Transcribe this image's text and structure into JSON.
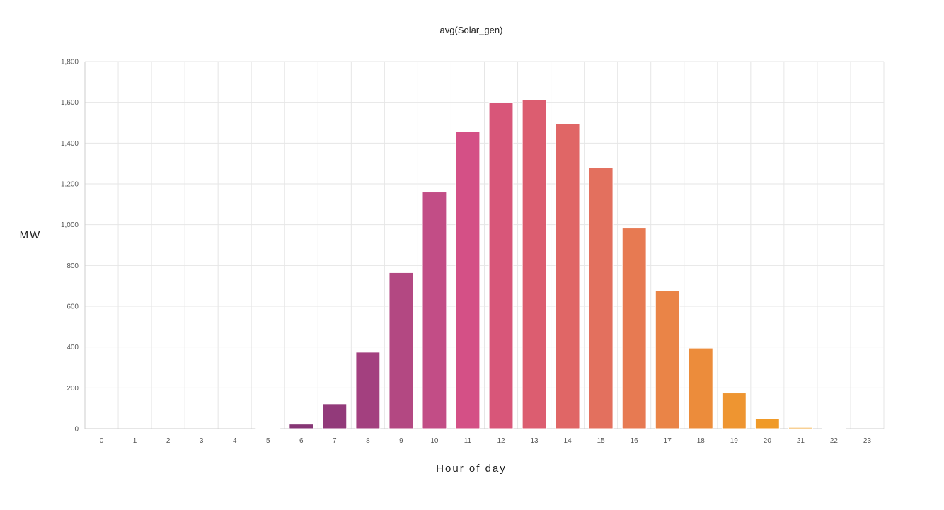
{
  "chart_data": {
    "type": "bar",
    "title": "avg(Solar_gen)",
    "xlabel": "Hour of day",
    "ylabel": "MW",
    "categories": [
      "0",
      "1",
      "2",
      "3",
      "4",
      "5",
      "6",
      "7",
      "8",
      "9",
      "10",
      "11",
      "12",
      "13",
      "14",
      "15",
      "16",
      "17",
      "18",
      "19",
      "20",
      "21",
      "22",
      "23"
    ],
    "values": [
      0,
      0,
      0,
      0,
      0,
      3,
      22,
      122,
      375,
      765,
      1160,
      1455,
      1600,
      1612,
      1495,
      1278,
      983,
      677,
      395,
      175,
      48,
      6,
      2,
      0
    ],
    "ylim": [
      0,
      1800
    ],
    "yticks": [
      "0",
      "200",
      "400",
      "600",
      "800",
      "1,000",
      "1,200",
      "1,400",
      "1,600",
      "1,800"
    ],
    "ytick_values": [
      0,
      200,
      400,
      600,
      800,
      1000,
      1200,
      1400,
      1600,
      1800
    ],
    "grid": true,
    "legend": "none",
    "colors": [
      "#3b1f4e",
      "#4a2356",
      "#58285e",
      "#652d66",
      "#6f2f6b",
      "#7a3270",
      "#863675",
      "#923a7a",
      "#a3407f",
      "#b34882",
      "#c24d86",
      "#d45086",
      "#d85679",
      "#dc5d70",
      "#e06666",
      "#e3705e",
      "#e77a52",
      "#ea8447",
      "#ec8c3b",
      "#ee9531",
      "#f09a28",
      "#f1a12a",
      "#f3ab44",
      "#f4b55c"
    ]
  }
}
